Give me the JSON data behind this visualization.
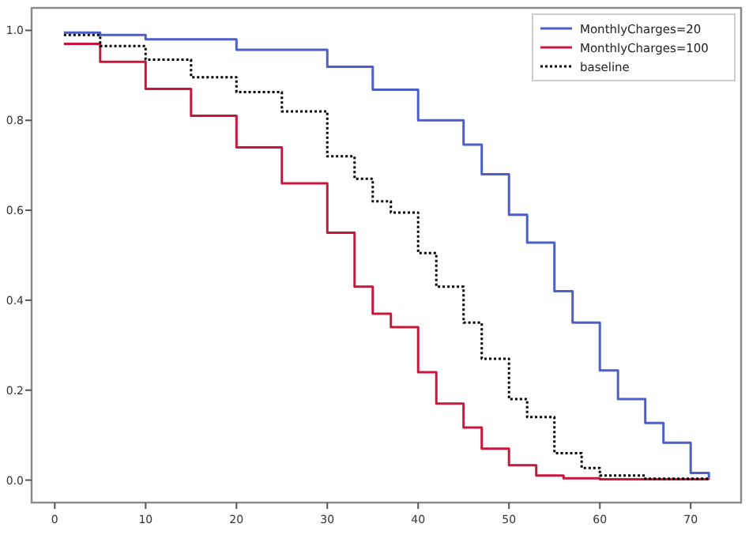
{
  "chart_data": {
    "type": "step",
    "xlim": [
      -2.55,
      75.55
    ],
    "ylim": [
      -0.05,
      1.05
    ],
    "xticks": [
      0,
      10,
      20,
      30,
      40,
      50,
      60,
      70
    ],
    "yticks": [
      {
        "value": 0,
        "label": "0.0"
      },
      0.2,
      0.4,
      0.6,
      0.8,
      {
        "value": 1,
        "label": "1.0"
      }
    ],
    "legend": "top right",
    "grid": false,
    "series": [
      {
        "name": "MonthlyCharges=20",
        "color": "#4c5fc8",
        "line_style": "solid",
        "x": [
          1,
          5,
          10,
          20,
          30,
          35,
          40,
          45,
          47,
          50,
          52,
          55,
          57,
          60,
          62,
          65,
          67,
          70,
          72
        ],
        "values": [
          0.995,
          0.99,
          0.98,
          0.957,
          0.919,
          0.868,
          0.8,
          0.746,
          0.68,
          0.59,
          0.528,
          0.42,
          0.35,
          0.244,
          0.18,
          0.127,
          0.083,
          0.016,
          0.005
        ]
      },
      {
        "name": "MonthlyCharges=100",
        "color": "#c8163c",
        "line_style": "solid",
        "x": [
          1,
          5,
          10,
          15,
          20,
          25,
          30,
          33,
          35,
          37,
          40,
          42,
          45,
          47,
          50,
          53,
          56,
          60,
          72
        ],
        "values": [
          0.97,
          0.93,
          0.87,
          0.81,
          0.74,
          0.66,
          0.55,
          0.43,
          0.37,
          0.34,
          0.24,
          0.17,
          0.117,
          0.07,
          0.033,
          0.01,
          0.004,
          0.002,
          0.001
        ]
      },
      {
        "name": "baseline",
        "color": "#000000",
        "line_style": "dotted",
        "x": [
          1,
          5,
          10,
          15,
          20,
          25,
          30,
          33,
          35,
          37,
          40,
          42,
          45,
          47,
          50,
          52,
          55,
          58,
          60,
          65,
          72
        ],
        "values": [
          0.99,
          0.965,
          0.935,
          0.896,
          0.863,
          0.82,
          0.72,
          0.67,
          0.62,
          0.595,
          0.505,
          0.43,
          0.35,
          0.27,
          0.18,
          0.14,
          0.06,
          0.027,
          0.01,
          0.003,
          0.001
        ]
      }
    ]
  }
}
